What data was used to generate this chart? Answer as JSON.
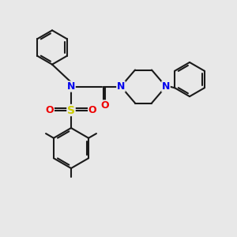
{
  "bg_color": "#e8e8e8",
  "bond_color": "#1a1a1a",
  "N_color": "#0000ee",
  "O_color": "#ee0000",
  "S_color": "#cccc00",
  "line_width": 1.5,
  "font_size": 9,
  "figsize": [
    3.0,
    3.0
  ],
  "dpi": 100,
  "xlim": [
    0,
    10
  ],
  "ylim": [
    0,
    10
  ]
}
